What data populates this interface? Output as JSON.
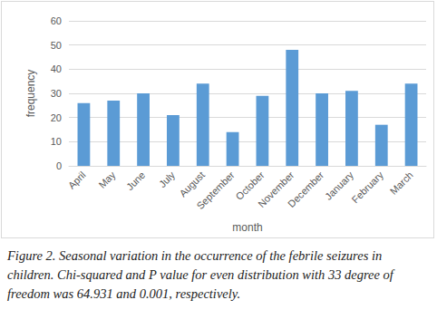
{
  "chart_data": {
    "type": "bar",
    "caption": "Figure 2. Seasonal variation in the occurrence of the febrile seizures in children. Chi-squared and P value for even distribution with 33 degree of freedom was 64.931 and 0.001, respectively.",
    "x_label": "month",
    "y_label": "frequency",
    "categories": [
      "April",
      "May",
      "June",
      "July",
      "August",
      "September",
      "October",
      "November",
      "December",
      "January",
      "February",
      "March"
    ],
    "values": [
      26,
      27,
      30,
      21,
      34,
      14,
      29,
      48,
      30,
      31,
      17,
      34
    ],
    "color": "#5b9bd5",
    "ylim": [
      0,
      60
    ],
    "yticks": [
      0,
      10,
      20,
      30,
      40,
      50,
      60
    ],
    "grid": true
  }
}
